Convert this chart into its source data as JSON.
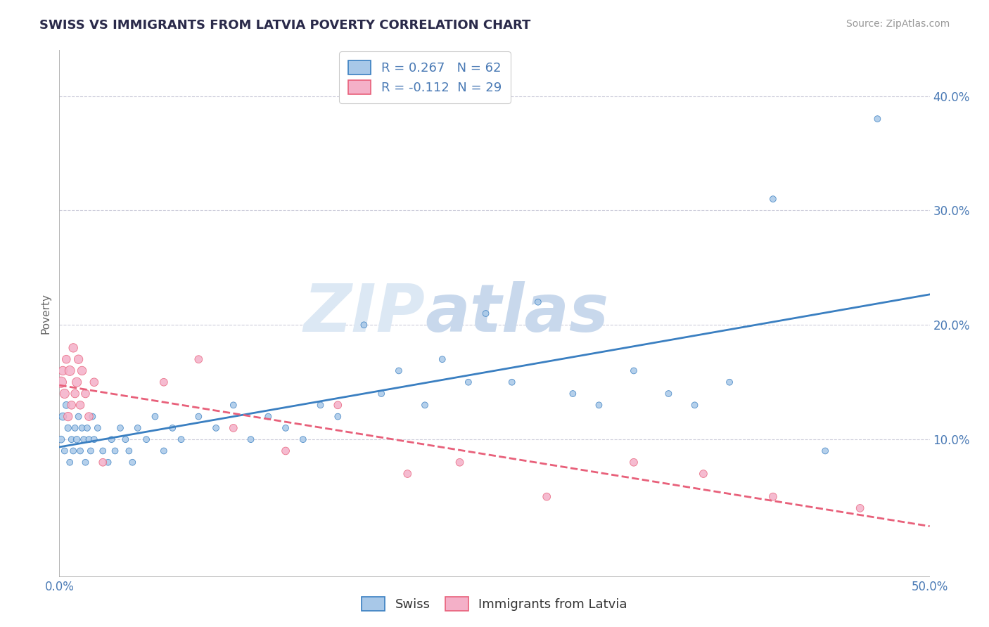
{
  "title": "SWISS VS IMMIGRANTS FROM LATVIA POVERTY CORRELATION CHART",
  "source": "Source: ZipAtlas.com",
  "ylabel": "Poverty",
  "xlim": [
    0.0,
    0.5
  ],
  "ylim": [
    -0.02,
    0.44
  ],
  "swiss_R": 0.267,
  "swiss_N": 62,
  "latvia_R": -0.112,
  "latvia_N": 29,
  "swiss_color": "#a8c8e8",
  "latvia_color": "#f4b0c8",
  "swiss_line_color": "#3a7fc1",
  "latvia_line_color": "#e8607a",
  "title_color": "#2a2a4a",
  "axis_label_color": "#4a7ab5",
  "background_color": "#ffffff",
  "watermark_color": "#dde8f5",
  "swiss_x": [
    0.001,
    0.002,
    0.003,
    0.004,
    0.005,
    0.006,
    0.007,
    0.008,
    0.009,
    0.01,
    0.011,
    0.012,
    0.013,
    0.014,
    0.015,
    0.016,
    0.017,
    0.018,
    0.019,
    0.02,
    0.022,
    0.025,
    0.028,
    0.03,
    0.032,
    0.035,
    0.038,
    0.04,
    0.042,
    0.045,
    0.05,
    0.055,
    0.06,
    0.065,
    0.07,
    0.08,
    0.09,
    0.1,
    0.11,
    0.12,
    0.13,
    0.14,
    0.15,
    0.16,
    0.175,
    0.185,
    0.195,
    0.21,
    0.22,
    0.235,
    0.245,
    0.26,
    0.275,
    0.295,
    0.31,
    0.33,
    0.35,
    0.365,
    0.385,
    0.41,
    0.44,
    0.47
  ],
  "swiss_y": [
    0.1,
    0.12,
    0.09,
    0.13,
    0.11,
    0.08,
    0.1,
    0.09,
    0.11,
    0.1,
    0.12,
    0.09,
    0.11,
    0.1,
    0.08,
    0.11,
    0.1,
    0.09,
    0.12,
    0.1,
    0.11,
    0.09,
    0.08,
    0.1,
    0.09,
    0.11,
    0.1,
    0.09,
    0.08,
    0.11,
    0.1,
    0.12,
    0.09,
    0.11,
    0.1,
    0.12,
    0.11,
    0.13,
    0.1,
    0.12,
    0.11,
    0.1,
    0.13,
    0.12,
    0.2,
    0.14,
    0.16,
    0.13,
    0.17,
    0.15,
    0.21,
    0.15,
    0.22,
    0.14,
    0.13,
    0.16,
    0.14,
    0.13,
    0.15,
    0.31,
    0.09,
    0.38
  ],
  "swiss_sizes": [
    50,
    60,
    40,
    50,
    45,
    40,
    40,
    40,
    40,
    45,
    40,
    40,
    40,
    40,
    40,
    40,
    40,
    40,
    40,
    40,
    40,
    40,
    40,
    40,
    40,
    40,
    40,
    40,
    40,
    40,
    40,
    40,
    40,
    40,
    40,
    40,
    40,
    40,
    40,
    40,
    40,
    40,
    40,
    40,
    40,
    40,
    40,
    40,
    40,
    40,
    40,
    40,
    40,
    40,
    40,
    40,
    40,
    40,
    40,
    40,
    40,
    40
  ],
  "latvia_x": [
    0.001,
    0.002,
    0.003,
    0.004,
    0.005,
    0.006,
    0.007,
    0.008,
    0.009,
    0.01,
    0.011,
    0.012,
    0.013,
    0.015,
    0.017,
    0.02,
    0.025,
    0.06,
    0.08,
    0.1,
    0.13,
    0.16,
    0.2,
    0.23,
    0.28,
    0.33,
    0.37,
    0.41,
    0.46
  ],
  "latvia_y": [
    0.15,
    0.16,
    0.14,
    0.17,
    0.12,
    0.16,
    0.13,
    0.18,
    0.14,
    0.15,
    0.17,
    0.13,
    0.16,
    0.14,
    0.12,
    0.15,
    0.08,
    0.15,
    0.17,
    0.11,
    0.09,
    0.13,
    0.07,
    0.08,
    0.05,
    0.08,
    0.07,
    0.05,
    0.04
  ],
  "latvia_sizes": [
    120,
    80,
    90,
    70,
    80,
    100,
    70,
    80,
    70,
    90,
    80,
    70,
    80,
    70,
    70,
    70,
    60,
    60,
    60,
    60,
    60,
    60,
    60,
    60,
    60,
    60,
    60,
    60,
    60
  ]
}
